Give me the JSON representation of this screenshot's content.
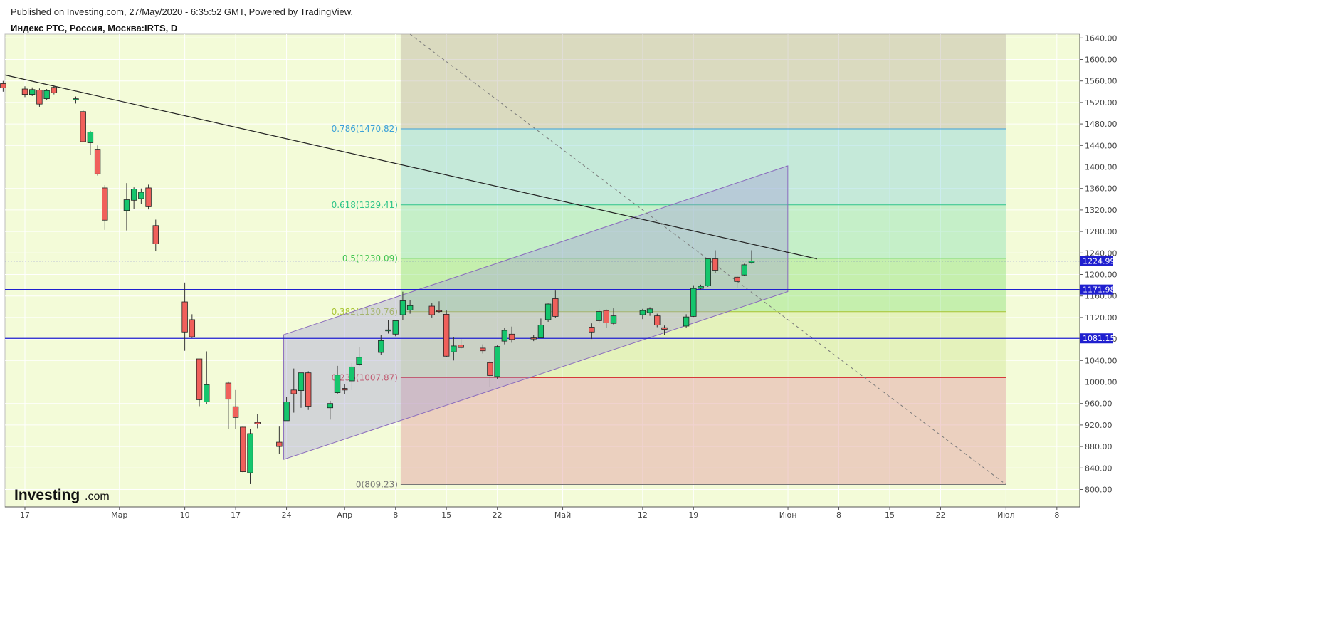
{
  "header": {
    "published": "Published on Investing.com, 27/May/2020 - 6:35:52 GMT, Powered by TradingView.",
    "symbol": "Индекс РТС, Россия, Москва:IRTS, D"
  },
  "logo": {
    "main": "Investing",
    "sub": ".com"
  },
  "colors": {
    "up": "#15c66d",
    "down": "#f0605b",
    "wick": "#333333",
    "plot_bg": "#f3fbd8",
    "hline": "#1f1fcf",
    "trend": "#222222",
    "fib_786": "#3ba0d9",
    "fib_618": "#2ec48a",
    "fib_5": "#41c451",
    "fib_382": "#a8c431",
    "fib_236": "#d53a3a",
    "fib_0": "#777777"
  },
  "chart_data": {
    "type": "candlestick",
    "title": "Индекс РТС, Россия, Москва:IRTS, D",
    "ylim": [
      780,
      1648
    ],
    "y_ticks": [
      "1640.00",
      "1600.00",
      "1560.00",
      "1520.00",
      "1480.00",
      "1440.00",
      "1400.00",
      "1360.00",
      "1320.00",
      "1280.00",
      "1240.00",
      "1200.00",
      "1160.00",
      "1120.00",
      "1080.00",
      "1040.00",
      "1000.00",
      "960.00",
      "920.00",
      "880.00",
      "840.00",
      "800.00"
    ],
    "x_ticks": [
      "17",
      "Мар",
      "10",
      "17",
      "24",
      "Апр",
      "8",
      "15",
      "22",
      "Май",
      "12",
      "19",
      "Июн",
      "8",
      "15",
      "22",
      "Июл",
      "8"
    ],
    "grid": true,
    "last_price": "1224.99",
    "price_lines": [
      "1171.98",
      "1081.15"
    ],
    "candles": [
      {
        "date": "2020-02-14",
        "o": 1555,
        "h": 1560,
        "l": 1540,
        "c": 1547
      },
      {
        "date": "2020-02-17",
        "o": 1545,
        "h": 1550,
        "l": 1530,
        "c": 1535
      },
      {
        "date": "2020-02-18",
        "o": 1535,
        "h": 1548,
        "l": 1532,
        "c": 1544
      },
      {
        "date": "2020-02-19",
        "o": 1543,
        "h": 1546,
        "l": 1512,
        "c": 1517
      },
      {
        "date": "2020-02-20",
        "o": 1527,
        "h": 1545,
        "l": 1525,
        "c": 1542
      },
      {
        "date": "2020-02-21",
        "o": 1548,
        "h": 1553,
        "l": 1535,
        "c": 1538
      },
      {
        "date": "2020-02-24",
        "o": 1527,
        "h": 1531,
        "l": 1518,
        "c": 1527
      },
      {
        "date": "2020-02-25",
        "o": 1503,
        "h": 1506,
        "l": 1447,
        "c": 1447
      },
      {
        "date": "2020-02-26",
        "o": 1445,
        "h": 1467,
        "l": 1422,
        "c": 1465
      },
      {
        "date": "2020-02-27",
        "o": 1433,
        "h": 1440,
        "l": 1384,
        "c": 1387
      },
      {
        "date": "2020-02-28",
        "o": 1361,
        "h": 1366,
        "l": 1283,
        "c": 1301
      },
      {
        "date": "2020-03-02",
        "o": 1319,
        "h": 1370,
        "l": 1282,
        "c": 1339
      },
      {
        "date": "2020-03-03",
        "o": 1338,
        "h": 1362,
        "l": 1322,
        "c": 1359
      },
      {
        "date": "2020-03-04",
        "o": 1341,
        "h": 1360,
        "l": 1331,
        "c": 1353
      },
      {
        "date": "2020-03-05",
        "o": 1361,
        "h": 1367,
        "l": 1321,
        "c": 1326
      },
      {
        "date": "2020-03-06",
        "o": 1291,
        "h": 1302,
        "l": 1243,
        "c": 1257
      },
      {
        "date": "2020-03-10",
        "o": 1149,
        "h": 1185,
        "l": 1058,
        "c": 1093
      },
      {
        "date": "2020-03-11",
        "o": 1116,
        "h": 1126,
        "l": 1082,
        "c": 1084
      },
      {
        "date": "2020-03-12",
        "o": 1043,
        "h": 1043,
        "l": 955,
        "c": 967
      },
      {
        "date": "2020-03-13",
        "o": 963,
        "h": 1057,
        "l": 959,
        "c": 995
      },
      {
        "date": "2020-03-16",
        "o": 998,
        "h": 1001,
        "l": 912,
        "c": 968
      },
      {
        "date": "2020-03-17",
        "o": 954,
        "h": 985,
        "l": 912,
        "c": 934
      },
      {
        "date": "2020-03-18",
        "o": 916,
        "h": 917,
        "l": 832,
        "c": 833
      },
      {
        "date": "2020-03-19",
        "o": 831,
        "h": 912,
        "l": 810,
        "c": 904
      },
      {
        "date": "2020-03-20",
        "o": 925,
        "h": 940,
        "l": 914,
        "c": 922
      },
      {
        "date": "2020-03-23",
        "o": 888,
        "h": 917,
        "l": 866,
        "c": 880
      },
      {
        "date": "2020-03-24",
        "o": 928,
        "h": 972,
        "l": 928,
        "c": 963
      },
      {
        "date": "2020-03-25",
        "o": 985,
        "h": 1025,
        "l": 943,
        "c": 978
      },
      {
        "date": "2020-03-26",
        "o": 984,
        "h": 1015,
        "l": 952,
        "c": 1017
      },
      {
        "date": "2020-03-27",
        "o": 1017,
        "h": 1020,
        "l": 948,
        "c": 955
      },
      {
        "date": "2020-03-30",
        "o": 952,
        "h": 965,
        "l": 930,
        "c": 960
      },
      {
        "date": "2020-03-31",
        "o": 980,
        "h": 1030,
        "l": 978,
        "c": 1013
      },
      {
        "date": "2020-04-01",
        "o": 988,
        "h": 996,
        "l": 978,
        "c": 985
      },
      {
        "date": "2020-04-02",
        "o": 1002,
        "h": 1035,
        "l": 985,
        "c": 1028
      },
      {
        "date": "2020-04-03",
        "o": 1033,
        "h": 1065,
        "l": 1030,
        "c": 1046
      },
      {
        "date": "2020-04-06",
        "o": 1055,
        "h": 1088,
        "l": 1050,
        "c": 1077
      },
      {
        "date": "2020-04-07",
        "o": 1097,
        "h": 1115,
        "l": 1090,
        "c": 1097
      },
      {
        "date": "2020-04-08",
        "o": 1089,
        "h": 1112,
        "l": 1085,
        "c": 1114
      },
      {
        "date": "2020-04-09",
        "o": 1125,
        "h": 1168,
        "l": 1115,
        "c": 1151
      },
      {
        "date": "2020-04-10",
        "o": 1134,
        "h": 1152,
        "l": 1127,
        "c": 1142
      },
      {
        "date": "2020-04-13",
        "o": 1141,
        "h": 1147,
        "l": 1120,
        "c": 1125
      },
      {
        "date": "2020-04-14",
        "o": 1133,
        "h": 1150,
        "l": 1128,
        "c": 1132
      },
      {
        "date": "2020-04-15",
        "o": 1126,
        "h": 1133,
        "l": 1046,
        "c": 1048
      },
      {
        "date": "2020-04-16",
        "o": 1056,
        "h": 1083,
        "l": 1040,
        "c": 1067
      },
      {
        "date": "2020-04-17",
        "o": 1069,
        "h": 1080,
        "l": 1062,
        "c": 1064
      },
      {
        "date": "2020-04-20",
        "o": 1063,
        "h": 1070,
        "l": 1053,
        "c": 1058
      },
      {
        "date": "2020-04-21",
        "o": 1036,
        "h": 1040,
        "l": 990,
        "c": 1012
      },
      {
        "date": "2020-04-22",
        "o": 1010,
        "h": 1068,
        "l": 1006,
        "c": 1066
      },
      {
        "date": "2020-04-23",
        "o": 1076,
        "h": 1100,
        "l": 1070,
        "c": 1096
      },
      {
        "date": "2020-04-24",
        "o": 1089,
        "h": 1103,
        "l": 1073,
        "c": 1079
      },
      {
        "date": "2020-04-27",
        "o": 1082,
        "h": 1088,
        "l": 1076,
        "c": 1080
      },
      {
        "date": "2020-04-28",
        "o": 1082,
        "h": 1118,
        "l": 1082,
        "c": 1106
      },
      {
        "date": "2020-04-29",
        "o": 1116,
        "h": 1146,
        "l": 1112,
        "c": 1145
      },
      {
        "date": "2020-04-30",
        "o": 1155,
        "h": 1170,
        "l": 1119,
        "c": 1122
      },
      {
        "date": "2020-05-05",
        "o": 1102,
        "h": 1109,
        "l": 1080,
        "c": 1093
      },
      {
        "date": "2020-05-06",
        "o": 1114,
        "h": 1135,
        "l": 1110,
        "c": 1131
      },
      {
        "date": "2020-05-07",
        "o": 1133,
        "h": 1135,
        "l": 1101,
        "c": 1110
      },
      {
        "date": "2020-05-08",
        "o": 1109,
        "h": 1137,
        "l": 1107,
        "c": 1123
      },
      {
        "date": "2020-05-12",
        "o": 1125,
        "h": 1136,
        "l": 1117,
        "c": 1133
      },
      {
        "date": "2020-05-13",
        "o": 1129,
        "h": 1139,
        "l": 1123,
        "c": 1136
      },
      {
        "date": "2020-05-14",
        "o": 1123,
        "h": 1127,
        "l": 1102,
        "c": 1106
      },
      {
        "date": "2020-05-15",
        "o": 1101,
        "h": 1105,
        "l": 1088,
        "c": 1098
      },
      {
        "date": "2020-05-18",
        "o": 1104,
        "h": 1126,
        "l": 1100,
        "c": 1121
      },
      {
        "date": "2020-05-19",
        "o": 1122,
        "h": 1180,
        "l": 1121,
        "c": 1174
      },
      {
        "date": "2020-05-20",
        "o": 1174,
        "h": 1181,
        "l": 1172,
        "c": 1178
      },
      {
        "date": "2020-05-21",
        "o": 1179,
        "h": 1229,
        "l": 1177,
        "c": 1229
      },
      {
        "date": "2020-05-22",
        "o": 1229,
        "h": 1245,
        "l": 1203,
        "c": 1208
      },
      {
        "date": "2020-05-25",
        "o": 1195,
        "h": 1198,
        "l": 1175,
        "c": 1187
      },
      {
        "date": "2020-05-26",
        "o": 1199,
        "h": 1220,
        "l": 1197,
        "c": 1218
      },
      {
        "date": "2020-05-27",
        "o": 1222,
        "h": 1245,
        "l": 1220,
        "c": 1225
      }
    ],
    "fibonacci": [
      {
        "label": "0.786(1470.82)",
        "value": 1470.82
      },
      {
        "label": "0.618(1329.41)",
        "value": 1329.41
      },
      {
        "label": "0.5(1230.09)",
        "value": 1230.09
      },
      {
        "label": "0.382(1130.76)",
        "value": 1130.76
      },
      {
        "label": "0.236(1007.87)",
        "value": 1007.87
      },
      {
        "label": "0(809.23)",
        "value": 809.23
      }
    ]
  }
}
